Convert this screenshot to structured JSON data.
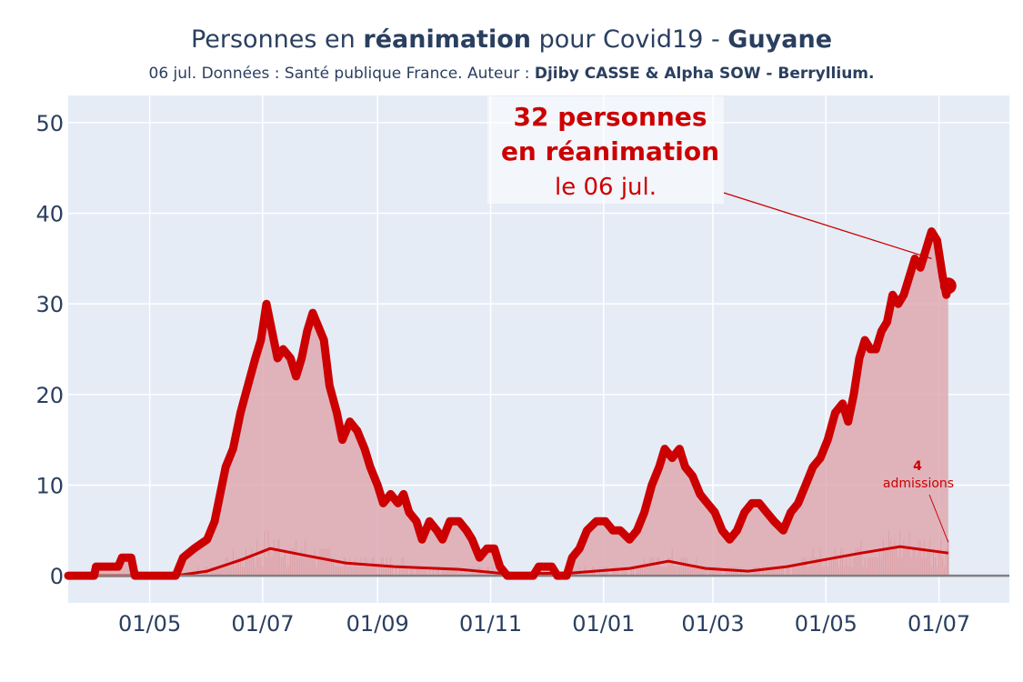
{
  "title": {
    "part1": "Personnes en ",
    "bold1": "réanimation",
    "part2": " pour Covid19 - ",
    "bold2": "Guyane"
  },
  "subtitle": {
    "text": "06 jul. Données : Santé publique France. Auteur : ",
    "bold": "Djiby CASSE & Alpha SOW - Berryllium."
  },
  "annotation": {
    "line1": "32 personnes",
    "line2": "en réanimation",
    "line3": "le 06 jul."
  },
  "admissions_annotation": {
    "value": "4",
    "label": "admissions"
  },
  "colors": {
    "plot_bg": "#e5ecf6",
    "grid": "#ffffff",
    "main_line": "#cc0000",
    "fill": "#dfa9b0",
    "admissions": "#cd3a3a",
    "text": "#2a3f5f",
    "zero_line": "#808080"
  },
  "chart_data": {
    "type": "area",
    "x_tick_labels": [
      "01/05",
      "01/07",
      "01/09",
      "01/11",
      "01/01",
      "01/03",
      "01/05",
      "01/07"
    ],
    "x_tick_dates": [
      "2020-05-01",
      "2020-07-01",
      "2020-09-01",
      "2020-11-01",
      "2021-01-01",
      "2021-03-01",
      "2021-05-01",
      "2021-07-01"
    ],
    "x_range": [
      "2020-03-18",
      "2021-08-08"
    ],
    "ylim": [
      -3,
      53
    ],
    "y_ticks": [
      0,
      10,
      20,
      30,
      40,
      50
    ],
    "grid": true,
    "series": [
      {
        "role": "reanimation",
        "points": [
          [
            "2020-03-18",
            0
          ],
          [
            "2020-04-01",
            0
          ],
          [
            "2020-04-02",
            1
          ],
          [
            "2020-04-14",
            1
          ],
          [
            "2020-04-16",
            2
          ],
          [
            "2020-04-21",
            2
          ],
          [
            "2020-04-23",
            0
          ],
          [
            "2020-05-15",
            0
          ],
          [
            "2020-05-19",
            2
          ],
          [
            "2020-05-25",
            3
          ],
          [
            "2020-06-01",
            4
          ],
          [
            "2020-06-05",
            6
          ],
          [
            "2020-06-08",
            9
          ],
          [
            "2020-06-11",
            12
          ],
          [
            "2020-06-15",
            14
          ],
          [
            "2020-06-19",
            18
          ],
          [
            "2020-06-23",
            21
          ],
          [
            "2020-06-27",
            24
          ],
          [
            "2020-06-30",
            26
          ],
          [
            "2020-07-03",
            30
          ],
          [
            "2020-07-06",
            27
          ],
          [
            "2020-07-09",
            24
          ],
          [
            "2020-07-12",
            25
          ],
          [
            "2020-07-16",
            24
          ],
          [
            "2020-07-19",
            22
          ],
          [
            "2020-07-22",
            24
          ],
          [
            "2020-07-25",
            27
          ],
          [
            "2020-07-28",
            29
          ],
          [
            "2020-07-30",
            28
          ],
          [
            "2020-08-03",
            26
          ],
          [
            "2020-08-06",
            21
          ],
          [
            "2020-08-10",
            18
          ],
          [
            "2020-08-13",
            15
          ],
          [
            "2020-08-17",
            17
          ],
          [
            "2020-08-21",
            16
          ],
          [
            "2020-08-25",
            14
          ],
          [
            "2020-08-28",
            12
          ],
          [
            "2020-09-01",
            10
          ],
          [
            "2020-09-04",
            8
          ],
          [
            "2020-09-08",
            9
          ],
          [
            "2020-09-12",
            8
          ],
          [
            "2020-09-15",
            9
          ],
          [
            "2020-09-18",
            7
          ],
          [
            "2020-09-22",
            6
          ],
          [
            "2020-09-25",
            4
          ],
          [
            "2020-09-29",
            6
          ],
          [
            "2020-10-03",
            5
          ],
          [
            "2020-10-06",
            4
          ],
          [
            "2020-10-10",
            6
          ],
          [
            "2020-10-15",
            6
          ],
          [
            "2020-10-19",
            5
          ],
          [
            "2020-10-22",
            4
          ],
          [
            "2020-10-26",
            2
          ],
          [
            "2020-10-30",
            3
          ],
          [
            "2020-11-03",
            3
          ],
          [
            "2020-11-06",
            1
          ],
          [
            "2020-11-10",
            0
          ],
          [
            "2020-11-24",
            0
          ],
          [
            "2020-11-27",
            1
          ],
          [
            "2020-12-04",
            1
          ],
          [
            "2020-12-07",
            0
          ],
          [
            "2020-12-12",
            0
          ],
          [
            "2020-12-15",
            2
          ],
          [
            "2020-12-19",
            3
          ],
          [
            "2020-12-23",
            5
          ],
          [
            "2020-12-28",
            6
          ],
          [
            "2021-01-02",
            6
          ],
          [
            "2021-01-06",
            5
          ],
          [
            "2021-01-10",
            5
          ],
          [
            "2021-01-15",
            4
          ],
          [
            "2021-01-19",
            5
          ],
          [
            "2021-01-23",
            7
          ],
          [
            "2021-01-27",
            10
          ],
          [
            "2021-01-31",
            12
          ],
          [
            "2021-02-03",
            14
          ],
          [
            "2021-02-07",
            13
          ],
          [
            "2021-02-11",
            14
          ],
          [
            "2021-02-14",
            12
          ],
          [
            "2021-02-18",
            11
          ],
          [
            "2021-02-22",
            9
          ],
          [
            "2021-02-26",
            8
          ],
          [
            "2021-03-02",
            7
          ],
          [
            "2021-03-06",
            5
          ],
          [
            "2021-03-10",
            4
          ],
          [
            "2021-03-14",
            5
          ],
          [
            "2021-03-18",
            7
          ],
          [
            "2021-03-22",
            8
          ],
          [
            "2021-03-26",
            8
          ],
          [
            "2021-03-30",
            7
          ],
          [
            "2021-04-03",
            6
          ],
          [
            "2021-04-08",
            5
          ],
          [
            "2021-04-12",
            7
          ],
          [
            "2021-04-16",
            8
          ],
          [
            "2021-04-20",
            10
          ],
          [
            "2021-04-24",
            12
          ],
          [
            "2021-04-28",
            13
          ],
          [
            "2021-05-02",
            15
          ],
          [
            "2021-05-06",
            18
          ],
          [
            "2021-05-10",
            19
          ],
          [
            "2021-05-13",
            17
          ],
          [
            "2021-05-16",
            20
          ],
          [
            "2021-05-19",
            24
          ],
          [
            "2021-05-22",
            26
          ],
          [
            "2021-05-25",
            25
          ],
          [
            "2021-05-28",
            25
          ],
          [
            "2021-05-31",
            27
          ],
          [
            "2021-06-03",
            28
          ],
          [
            "2021-06-06",
            31
          ],
          [
            "2021-06-09",
            30
          ],
          [
            "2021-06-12",
            31
          ],
          [
            "2021-06-15",
            33
          ],
          [
            "2021-06-18",
            35
          ],
          [
            "2021-06-21",
            34
          ],
          [
            "2021-06-24",
            36
          ],
          [
            "2021-06-27",
            38
          ],
          [
            "2021-06-30",
            37
          ],
          [
            "2021-07-03",
            33
          ],
          [
            "2021-07-05",
            31
          ],
          [
            "2021-07-06",
            32
          ]
        ]
      },
      {
        "role": "admissions_avg",
        "points": [
          [
            "2020-03-18",
            0
          ],
          [
            "2020-05-15",
            0
          ],
          [
            "2020-06-01",
            0.5
          ],
          [
            "2020-06-20",
            1.8
          ],
          [
            "2020-07-05",
            3
          ],
          [
            "2020-07-25",
            2.2
          ],
          [
            "2020-08-15",
            1.4
          ],
          [
            "2020-09-10",
            1
          ],
          [
            "2020-10-15",
            0.7
          ],
          [
            "2020-11-10",
            0.2
          ],
          [
            "2020-12-15",
            0.3
          ],
          [
            "2021-01-15",
            0.8
          ],
          [
            "2021-02-05",
            1.6
          ],
          [
            "2021-02-25",
            0.8
          ],
          [
            "2021-03-20",
            0.5
          ],
          [
            "2021-04-10",
            1
          ],
          [
            "2021-05-01",
            1.8
          ],
          [
            "2021-05-20",
            2.5
          ],
          [
            "2021-06-10",
            3.2
          ],
          [
            "2021-06-25",
            2.8
          ],
          [
            "2021-07-06",
            2.5
          ]
        ]
      },
      {
        "role": "admissions_daily",
        "last_value": 4,
        "max_value": 5
      }
    ],
    "highlight_point": [
      "2021-07-06",
      32
    ]
  }
}
